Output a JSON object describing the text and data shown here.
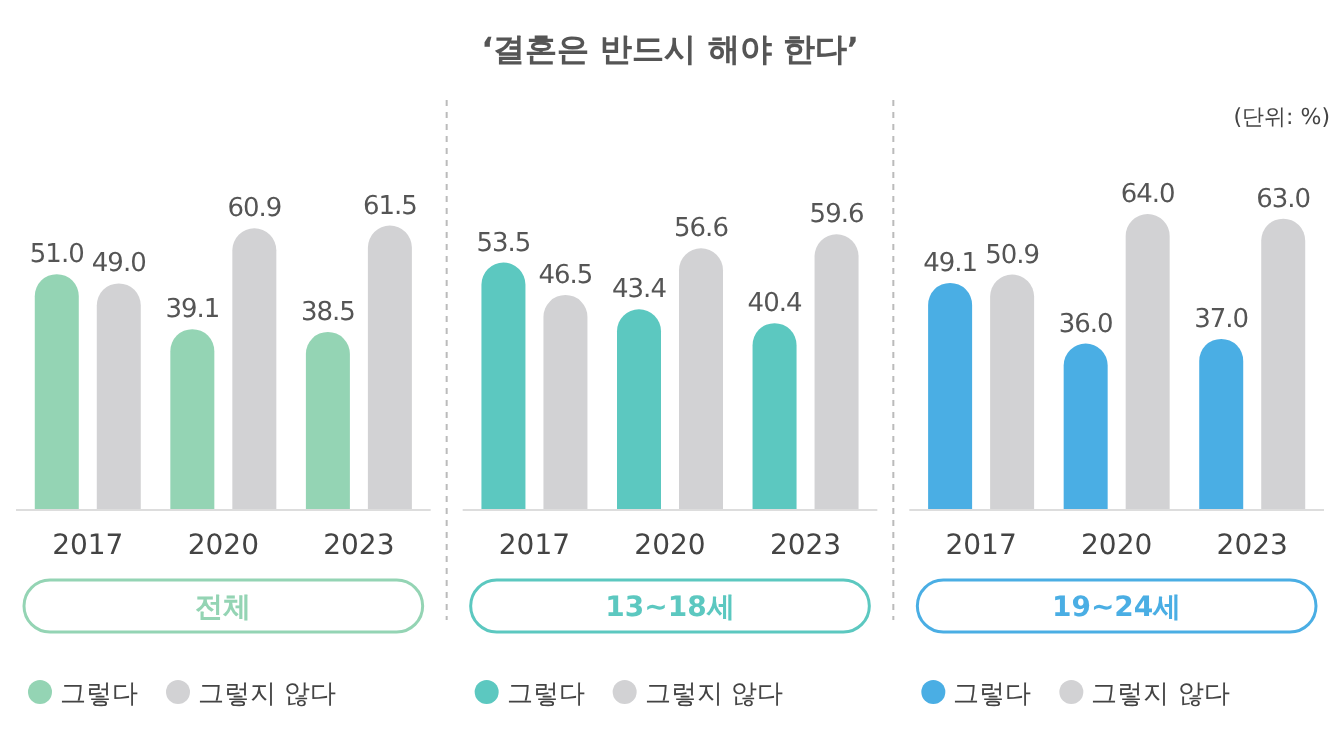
{
  "chart_data": [
    {
      "type": "bar",
      "subtitle": "전체",
      "categories": [
        "2017",
        "2020",
        "2023"
      ],
      "legend": "bottom",
      "series": [
        {
          "name": "그렇다",
          "color": "#94d4b4",
          "values": [
            51.0,
            39.1,
            38.5
          ],
          "value_labels": [
            "51.0",
            "39.1",
            "38.5"
          ]
        },
        {
          "name": "그렇지 않다",
          "color": "#d2d2d4",
          "values": [
            49.0,
            60.9,
            61.5
          ],
          "value_labels": [
            "49.0",
            "60.9",
            "61.5"
          ]
        }
      ]
    },
    {
      "type": "bar",
      "title": "‘결혼은 반드시 해야 한다’",
      "subtitle": "13~18세",
      "categories": [
        "2017",
        "2020",
        "2023"
      ],
      "legend": "bottom",
      "series": [
        {
          "name": "그렇다",
          "color": "#5cc8c0",
          "values": [
            53.5,
            43.4,
            40.4
          ],
          "value_labels": [
            "53.5",
            "43.4",
            "40.4"
          ]
        },
        {
          "name": "그렇지 않다",
          "color": "#d2d2d4",
          "values": [
            46.5,
            56.6,
            59.6
          ],
          "value_labels": [
            "46.5",
            "56.6",
            "59.6"
          ]
        }
      ]
    },
    {
      "type": "bar",
      "subtitle": "19~24세",
      "annotations": [
        "(단위: %)"
      ],
      "categories": [
        "2017",
        "2020",
        "2023"
      ],
      "legend": "bottom",
      "series": [
        {
          "name": "그렇다",
          "color": "#4aaee4",
          "values": [
            49.1,
            36.0,
            37.0
          ],
          "value_labels": [
            "49.1",
            "36.0",
            "37.0"
          ]
        },
        {
          "name": "그렇지 않다",
          "color": "#d2d2d4",
          "values": [
            50.9,
            64.0,
            63.0
          ],
          "value_labels": [
            "50.9",
            "64.0",
            "63.0"
          ]
        }
      ]
    }
  ]
}
